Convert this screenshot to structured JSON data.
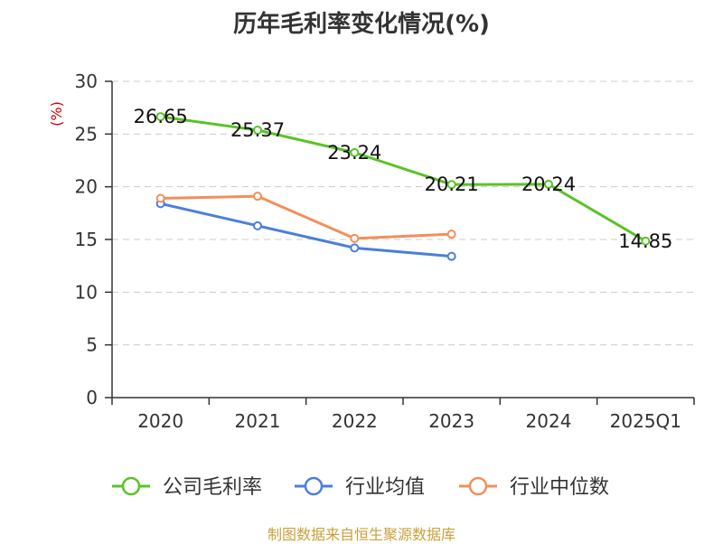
{
  "chart_data": {
    "type": "line",
    "title": "历年毛利率变化情况(%)",
    "y_unit": "(%)",
    "categories": [
      "2020",
      "2021",
      "2022",
      "2023",
      "2024",
      "2025Q1"
    ],
    "ylim": [
      0,
      30
    ],
    "yticks": [
      "0",
      "5",
      "10",
      "15",
      "20",
      "25",
      "30"
    ],
    "grid": true,
    "legend_position": "bottom",
    "series": [
      {
        "name": "公司毛利率",
        "color": "#5bc228",
        "values": [
          26.65,
          25.37,
          23.24,
          20.21,
          20.24,
          14.85
        ],
        "labels": [
          "26.65",
          "25.37",
          "23.24",
          "20.21",
          "20.24",
          "14.85"
        ]
      },
      {
        "name": "行业均值",
        "color": "#4a7fdb",
        "values": [
          18.4,
          16.3,
          14.2,
          13.4,
          null,
          null
        ]
      },
      {
        "name": "行业中位数",
        "color": "#f28f5a",
        "values": [
          18.9,
          19.1,
          15.1,
          15.5,
          null,
          null
        ]
      }
    ]
  },
  "source": "制图数据来自恒生聚源数据库",
  "colors": {
    "unit": "#cc0000",
    "source": "#c9a13a",
    "grid": "#cccccc",
    "axis": "#333333"
  }
}
